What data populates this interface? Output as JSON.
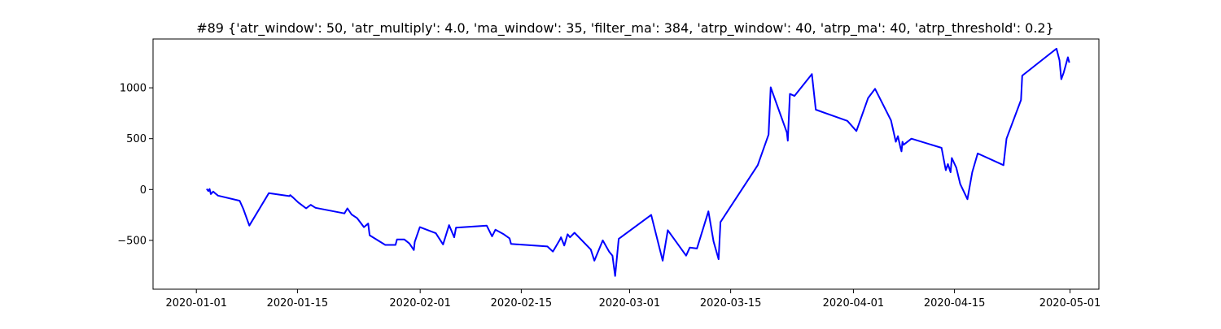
{
  "chart_data": {
    "type": "line",
    "title": "#89 {'atr_window': 50, 'atr_multiply': 4.0, 'ma_window': 35, 'filter_ma': 384, 'atrp_window': 40, 'atrp_ma': 40, 'atrp_threshold': 0.2}",
    "xlabel": "",
    "ylabel": "",
    "x_is_date": true,
    "xlim": [
      "2019-12-26",
      "2020-05-05"
    ],
    "ylim": [
      -980,
      1480
    ],
    "x_ticks": [
      "2020-01-01",
      "2020-01-15",
      "2020-02-01",
      "2020-02-15",
      "2020-03-01",
      "2020-03-15",
      "2020-04-01",
      "2020-04-15",
      "2020-05-01"
    ],
    "y_ticks": [
      -500,
      0,
      500,
      1000
    ],
    "grid": false,
    "series": [
      {
        "color": "#0000ff",
        "points": [
          [
            "2020-01-02T12:00",
            0
          ],
          [
            "2020-01-02T16:00",
            -15
          ],
          [
            "2020-01-02T20:00",
            5
          ],
          [
            "2020-01-03T00:00",
            -45
          ],
          [
            "2020-01-03T08:00",
            -20
          ],
          [
            "2020-01-03T14:00",
            -35
          ],
          [
            "2020-01-04T00:00",
            -60
          ],
          [
            "2020-01-07T00:00",
            -110
          ],
          [
            "2020-01-07T12:00",
            -190
          ],
          [
            "2020-01-08T08:00",
            -355
          ],
          [
            "2020-01-11T01:00",
            -35
          ],
          [
            "2020-01-13T21:00",
            -65
          ],
          [
            "2020-01-14T00:00",
            -55
          ],
          [
            "2020-01-14T10:00",
            -80
          ],
          [
            "2020-01-15T04:00",
            -130
          ],
          [
            "2020-01-16T05:00",
            -185
          ],
          [
            "2020-01-16T20:00",
            -150
          ],
          [
            "2020-01-17T12:00",
            -180
          ],
          [
            "2020-01-21T12:00",
            -235
          ],
          [
            "2020-01-21T22:00",
            -185
          ],
          [
            "2020-01-22T12:00",
            -245
          ],
          [
            "2020-01-23T06:00",
            -280
          ],
          [
            "2020-01-24T05:00",
            -370
          ],
          [
            "2020-01-24T19:00",
            -335
          ],
          [
            "2020-01-25T00:00",
            -450
          ],
          [
            "2020-01-27T04:00",
            -545
          ],
          [
            "2020-01-28T14:00",
            -545
          ],
          [
            "2020-01-28T19:00",
            -490
          ],
          [
            "2020-01-29T19:00",
            -490
          ],
          [
            "2020-01-30T12:00",
            -530
          ],
          [
            "2020-01-31T03:00",
            -595
          ],
          [
            "2020-01-31T06:00",
            -515
          ],
          [
            "2020-01-31T23:00",
            -370
          ],
          [
            "2020-02-03T04:00",
            -430
          ],
          [
            "2020-02-04T04:00",
            -540
          ],
          [
            "2020-02-05T00:00",
            -350
          ],
          [
            "2020-02-05T17:00",
            -470
          ],
          [
            "2020-02-05T23:00",
            -375
          ],
          [
            "2020-02-10T05:00",
            -355
          ],
          [
            "2020-02-10T23:00",
            -460
          ],
          [
            "2020-02-11T10:00",
            -395
          ],
          [
            "2020-02-12T14:00",
            -440
          ],
          [
            "2020-02-13T09:00",
            -480
          ],
          [
            "2020-02-13T14:00",
            -535
          ],
          [
            "2020-02-18T15:00",
            -560
          ],
          [
            "2020-02-19T09:00",
            -610
          ],
          [
            "2020-02-20T08:00",
            -495
          ],
          [
            "2020-02-20T12:00",
            -470
          ],
          [
            "2020-02-20T23:00",
            -550
          ],
          [
            "2020-02-21T10:00",
            -440
          ],
          [
            "2020-02-21T18:00",
            -470
          ],
          [
            "2020-02-22T09:00",
            -425
          ],
          [
            "2020-02-24T15:00",
            -590
          ],
          [
            "2020-02-25T03:00",
            -700
          ],
          [
            "2020-02-26T07:00",
            -500
          ],
          [
            "2020-02-27T04:00",
            -610
          ],
          [
            "2020-02-27T15:00",
            -650
          ],
          [
            "2020-02-28T00:00",
            -850
          ],
          [
            "2020-02-28T12:00",
            -485
          ],
          [
            "2020-03-04T00:00",
            -250
          ],
          [
            "2020-03-05T14:00",
            -700
          ],
          [
            "2020-03-06T07:00",
            -400
          ],
          [
            "2020-03-08T20:00",
            -650
          ],
          [
            "2020-03-09T08:00",
            -570
          ],
          [
            "2020-03-10T08:00",
            -580
          ],
          [
            "2020-03-11T22:00",
            -215
          ],
          [
            "2020-03-12T15:00",
            -510
          ],
          [
            "2020-03-13T08:00",
            -685
          ],
          [
            "2020-03-13T14:00",
            -320
          ],
          [
            "2020-03-18T18:00",
            240
          ],
          [
            "2020-03-20T06:00",
            540
          ],
          [
            "2020-03-20T13:00",
            1005
          ],
          [
            "2020-03-22T19:00",
            560
          ],
          [
            "2020-03-22T22:00",
            480
          ],
          [
            "2020-03-23T05:00",
            940
          ],
          [
            "2020-03-23T20:00",
            920
          ],
          [
            "2020-03-26T06:00",
            1135
          ],
          [
            "2020-03-26T19:00",
            785
          ],
          [
            "2020-03-31T04:00",
            675
          ],
          [
            "2020-04-01T10:00",
            575
          ],
          [
            "2020-04-03T01:00",
            900
          ],
          [
            "2020-04-04T00:00",
            990
          ],
          [
            "2020-04-06T05:00",
            680
          ],
          [
            "2020-04-06T21:00",
            470
          ],
          [
            "2020-04-07T04:00",
            525
          ],
          [
            "2020-04-07T12:00",
            415
          ],
          [
            "2020-04-07T16:00",
            375
          ],
          [
            "2020-04-07T19:00",
            470
          ],
          [
            "2020-04-07T23:00",
            440
          ],
          [
            "2020-04-09T01:00",
            500
          ],
          [
            "2020-04-13T05:00",
            410
          ],
          [
            "2020-04-13T19:00",
            190
          ],
          [
            "2020-04-14T02:00",
            250
          ],
          [
            "2020-04-14T11:00",
            170
          ],
          [
            "2020-04-14T15:00",
            310
          ],
          [
            "2020-04-15T06:00",
            215
          ],
          [
            "2020-04-15T19:00",
            55
          ],
          [
            "2020-04-16T19:00",
            -95
          ],
          [
            "2020-04-17T11:00",
            170
          ],
          [
            "2020-04-18T05:00",
            355
          ],
          [
            "2020-04-21T19:00",
            240
          ],
          [
            "2020-04-22T05:00",
            500
          ],
          [
            "2020-04-24T05:00",
            880
          ],
          [
            "2020-04-24T09:00",
            1120
          ],
          [
            "2020-04-29T03:00",
            1385
          ],
          [
            "2020-04-29T13:00",
            1270
          ],
          [
            "2020-04-29T19:00",
            1085
          ],
          [
            "2020-04-30T03:00",
            1150
          ],
          [
            "2020-04-30T17:00",
            1300
          ],
          [
            "2020-04-30T21:00",
            1255
          ]
        ]
      }
    ]
  }
}
